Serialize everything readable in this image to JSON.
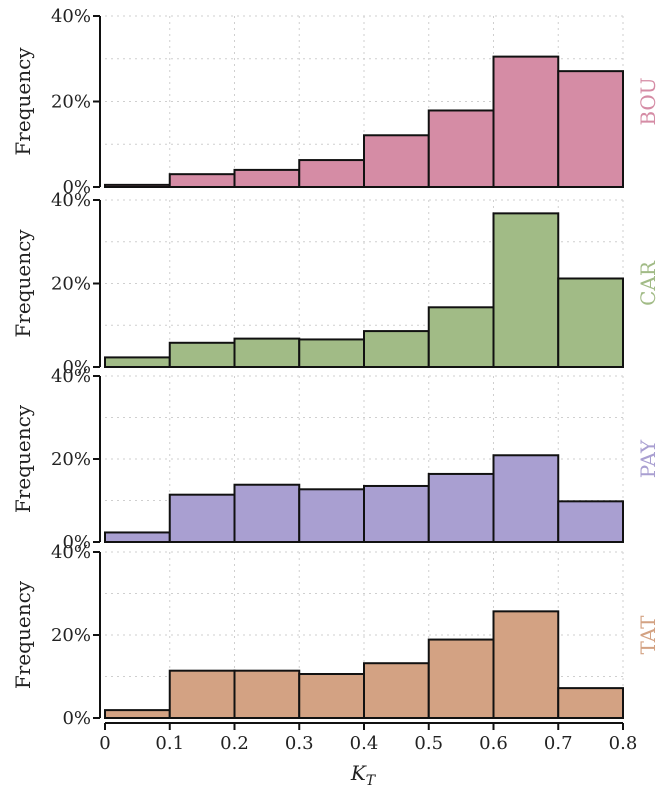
{
  "chart_data": {
    "type": "bar",
    "xlabel": "K_T",
    "ylabel": "Frequency",
    "bins": [
      0,
      0.1,
      0.2,
      0.3,
      0.4,
      0.5,
      0.6,
      0.7,
      0.8
    ],
    "xticks": [
      "0",
      "0.1",
      "0.2",
      "0.3",
      "0.4",
      "0.5",
      "0.6",
      "0.7",
      "0.8"
    ],
    "ylim": [
      0,
      40
    ],
    "yticks": [
      "0%",
      "20%",
      "40%"
    ],
    "grid": true,
    "panels": [
      {
        "name": "BOU",
        "color": "#d58ca5",
        "values": [
          0.5,
          3.0,
          4.0,
          6.3,
          12.1,
          17.9,
          30.5,
          27.1
        ]
      },
      {
        "name": "CAR",
        "color": "#a1bb86",
        "values": [
          2.3,
          5.8,
          6.8,
          6.6,
          8.6,
          14.3,
          36.8,
          21.2
        ]
      },
      {
        "name": "PAY",
        "color": "#a99fd1",
        "values": [
          2.3,
          11.4,
          13.8,
          12.7,
          13.5,
          16.4,
          20.9,
          9.8
        ]
      },
      {
        "name": "TAT",
        "color": "#d3a283",
        "values": [
          1.9,
          11.4,
          11.4,
          10.6,
          13.2,
          18.9,
          25.7,
          7.2
        ]
      }
    ]
  }
}
